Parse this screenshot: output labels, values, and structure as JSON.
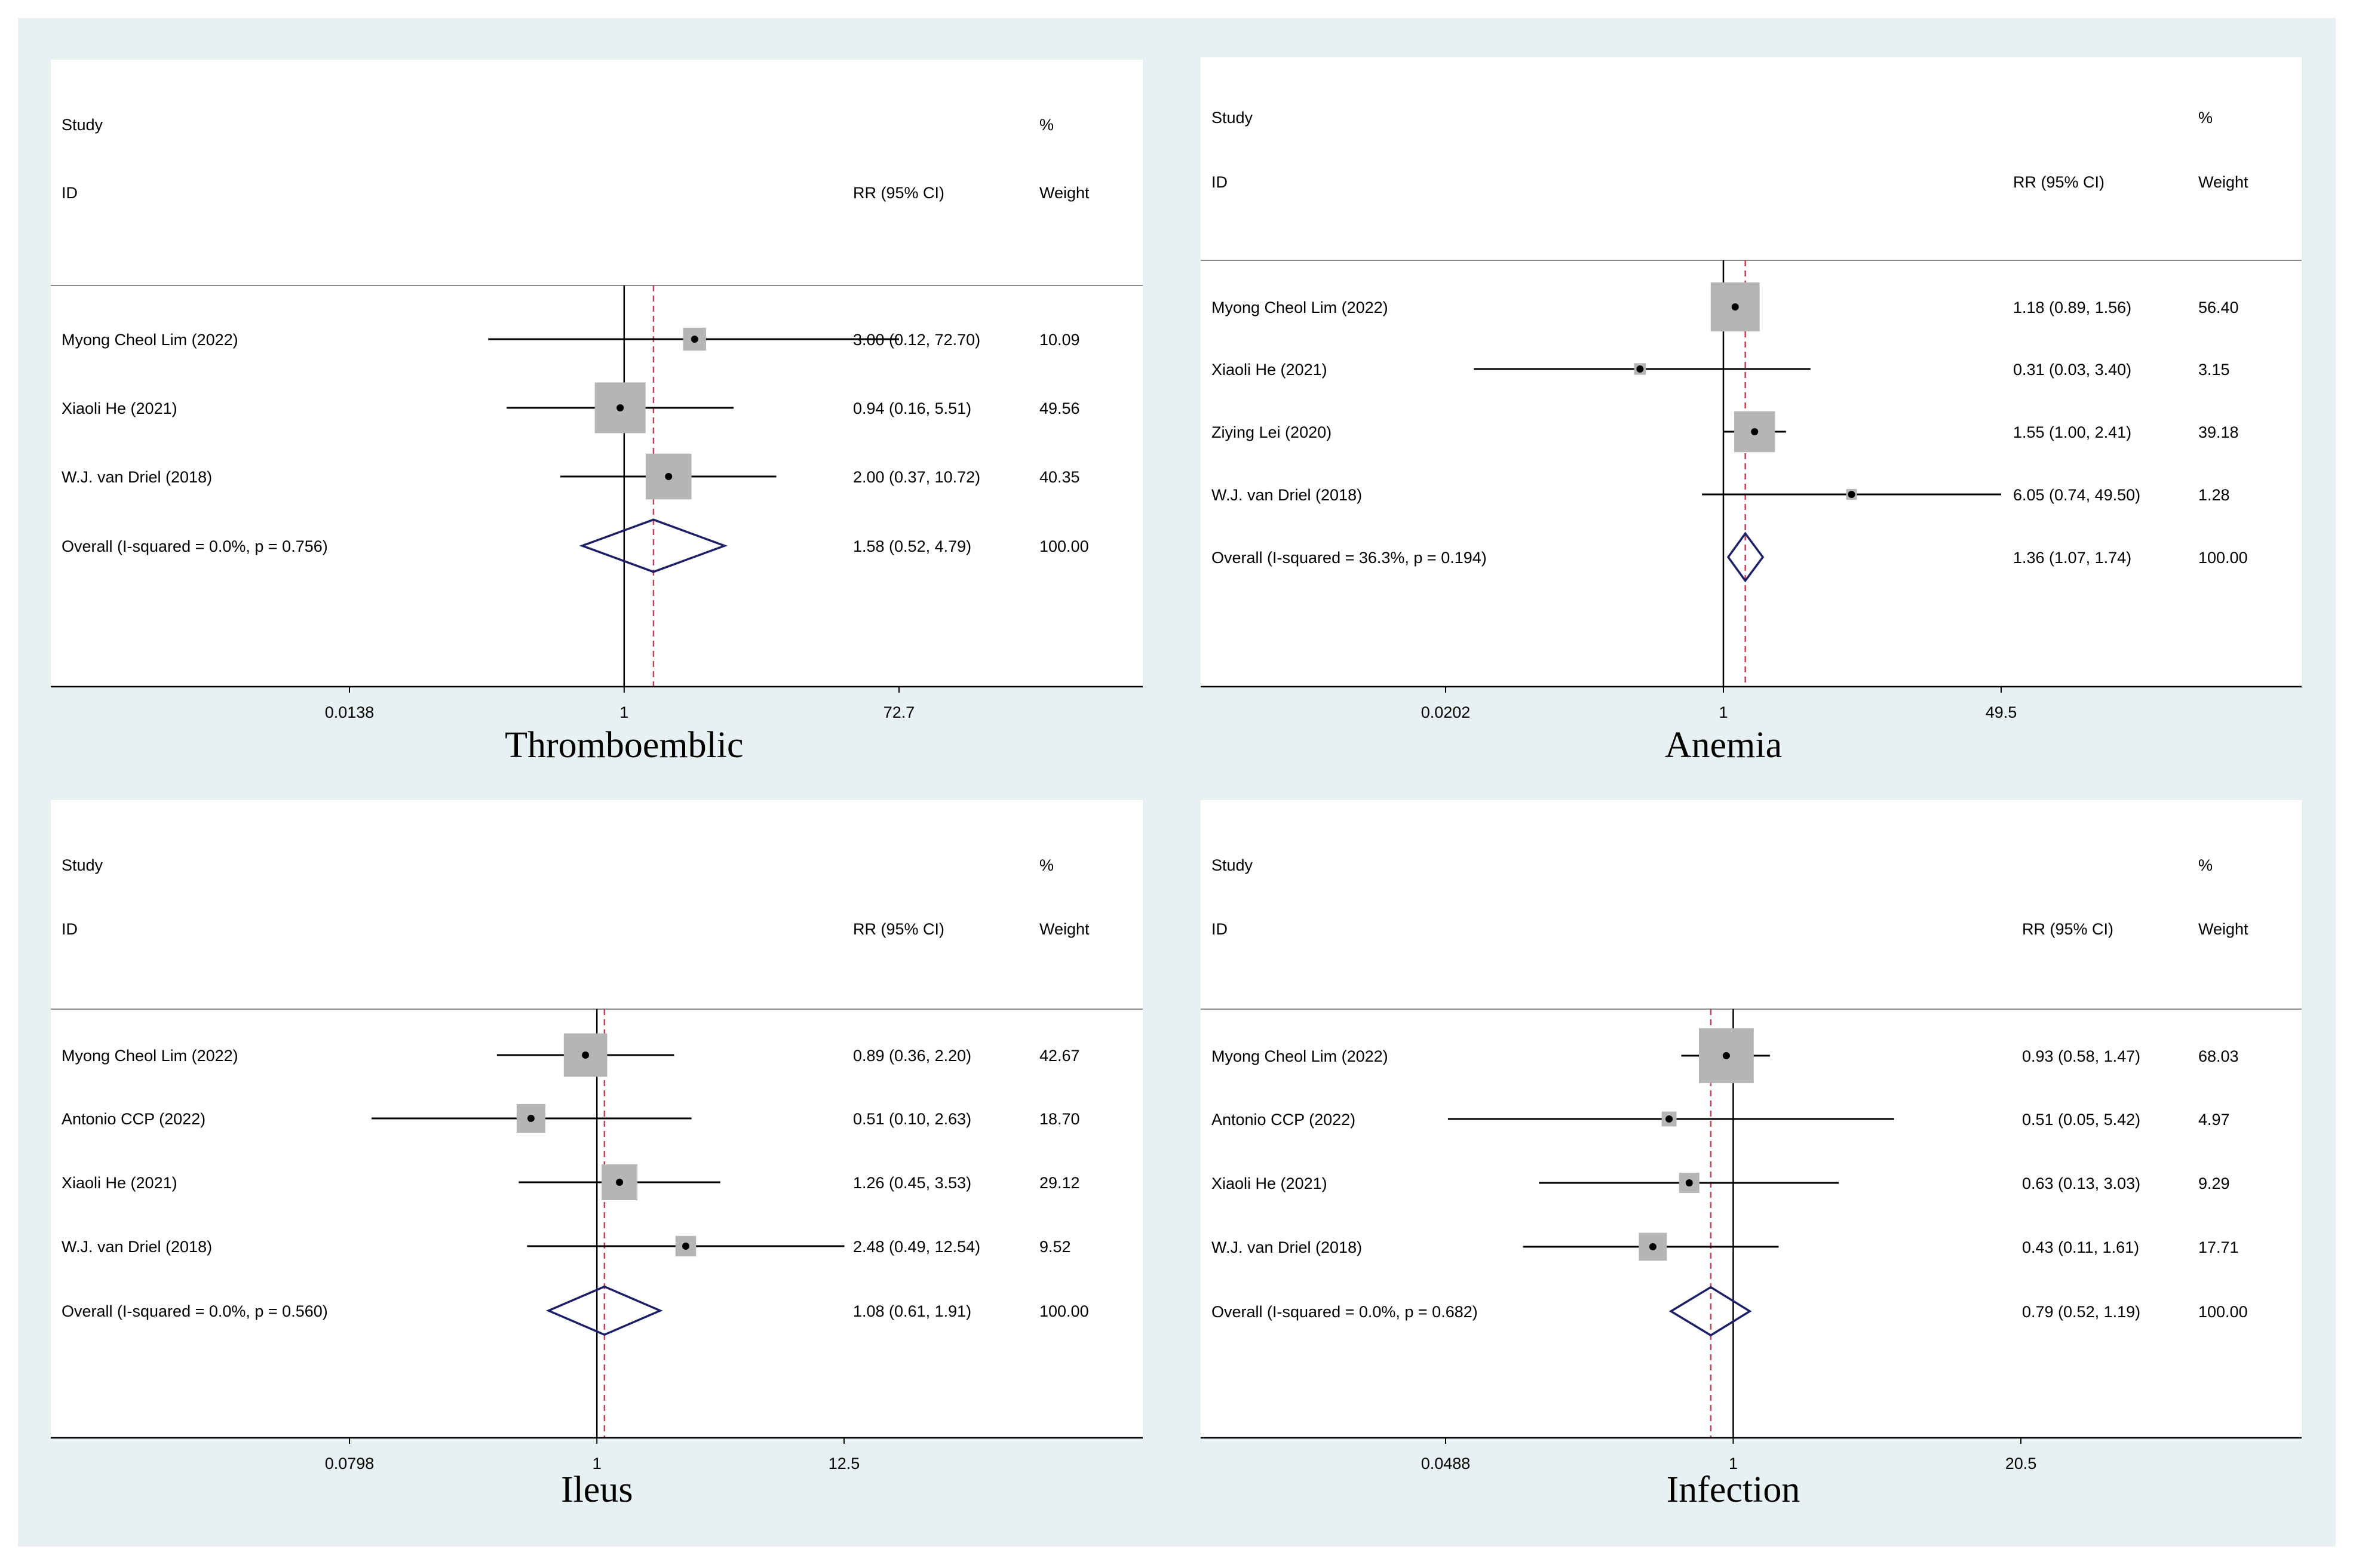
{
  "figure": {
    "colors": {
      "background": "#e7f1f1",
      "panel": "#ffffff",
      "marker_box": "#b5b5b5",
      "diamond": "#1b1f66",
      "reference_line": "#000000",
      "pooled_line": "#c0455a",
      "text": "#000000"
    }
  },
  "chart_data": [
    {
      "type": "forest",
      "title": "Thromboemblic",
      "header": {
        "study_line1": "Study",
        "study_line2": "ID",
        "effect_label": "RR (95% CI)",
        "weight_line1": "%",
        "weight_line2": "Weight"
      },
      "axis": {
        "scale": "log",
        "ticks": [
          0.0138,
          1,
          72.7
        ],
        "tick_labels": [
          "0.0138",
          "1",
          "72.7"
        ]
      },
      "studies": [
        {
          "label": "Myong Cheol Lim (2022)",
          "rr": 3.0,
          "lo": 0.12,
          "hi": 72.7,
          "ci_text": "3.00 (0.12, 72.70)",
          "weight": 10.09,
          "weight_text": "10.09"
        },
        {
          "label": "Xiaoli He (2021)",
          "rr": 0.94,
          "lo": 0.16,
          "hi": 5.51,
          "ci_text": "0.94 (0.16, 5.51)",
          "weight": 49.56,
          "weight_text": "49.56"
        },
        {
          "label": "W.J. van Driel (2018)",
          "rr": 2.0,
          "lo": 0.37,
          "hi": 10.72,
          "ci_text": "2.00 (0.37, 10.72)",
          "weight": 40.35,
          "weight_text": "40.35"
        }
      ],
      "overall": {
        "label": "Overall  (I-squared = 0.0%, p = 0.756)",
        "rr": 1.58,
        "lo": 0.52,
        "hi": 4.79,
        "ci_text": "1.58 (0.52, 4.79)",
        "weight_text": "100.00"
      }
    },
    {
      "type": "forest",
      "title": "Anemia",
      "header": {
        "study_line1": "Study",
        "study_line2": "ID",
        "effect_label": "RR (95% CI)",
        "weight_line1": "%",
        "weight_line2": "Weight"
      },
      "axis": {
        "scale": "log",
        "ticks": [
          0.0202,
          1,
          49.5
        ],
        "tick_labels": [
          "0.0202",
          "1",
          "49.5"
        ]
      },
      "studies": [
        {
          "label": "Myong Cheol Lim (2022)",
          "rr": 1.18,
          "lo": 0.89,
          "hi": 1.56,
          "ci_text": "1.18 (0.89, 1.56)",
          "weight": 56.4,
          "weight_text": "56.40"
        },
        {
          "label": "Xiaoli He (2021)",
          "rr": 0.31,
          "lo": 0.03,
          "hi": 3.4,
          "ci_text": "0.31 (0.03, 3.40)",
          "weight": 3.15,
          "weight_text": "3.15"
        },
        {
          "label": "Ziying Lei (2020)",
          "rr": 1.55,
          "lo": 1.0,
          "hi": 2.41,
          "ci_text": "1.55 (1.00, 2.41)",
          "weight": 39.18,
          "weight_text": "39.18"
        },
        {
          "label": "W.J. van Driel (2018)",
          "rr": 6.05,
          "lo": 0.74,
          "hi": 49.5,
          "ci_text": "6.05 (0.74, 49.50)",
          "weight": 1.28,
          "weight_text": "1.28"
        }
      ],
      "overall": {
        "label": "Overall  (I-squared = 36.3%, p = 0.194)",
        "rr": 1.36,
        "lo": 1.07,
        "hi": 1.74,
        "ci_text": "1.36 (1.07, 1.74)",
        "weight_text": "100.00"
      }
    },
    {
      "type": "forest",
      "title": "Ileus",
      "header": {
        "study_line1": "Study",
        "study_line2": "ID",
        "effect_label": "RR (95% CI)",
        "weight_line1": "%",
        "weight_line2": "Weight"
      },
      "axis": {
        "scale": "log",
        "ticks": [
          0.0798,
          1,
          12.5
        ],
        "tick_labels": [
          "0.0798",
          "1",
          "12.5"
        ]
      },
      "studies": [
        {
          "label": "Myong Cheol Lim (2022)",
          "rr": 0.89,
          "lo": 0.36,
          "hi": 2.2,
          "ci_text": "0.89 (0.36, 2.20)",
          "weight": 42.67,
          "weight_text": "42.67"
        },
        {
          "label": "Antonio CCP (2022)",
          "rr": 0.51,
          "lo": 0.1,
          "hi": 2.63,
          "ci_text": "0.51 (0.10, 2.63)",
          "weight": 18.7,
          "weight_text": "18.70"
        },
        {
          "label": "Xiaoli He (2021)",
          "rr": 1.26,
          "lo": 0.45,
          "hi": 3.53,
          "ci_text": "1.26 (0.45, 3.53)",
          "weight": 29.12,
          "weight_text": "29.12"
        },
        {
          "label": "W.J. van Driel (2018)",
          "rr": 2.48,
          "lo": 0.49,
          "hi": 12.54,
          "ci_text": "2.48 (0.49, 12.54)",
          "weight": 9.52,
          "weight_text": "9.52"
        }
      ],
      "overall": {
        "label": "Overall  (I-squared = 0.0%, p = 0.560)",
        "rr": 1.08,
        "lo": 0.61,
        "hi": 1.91,
        "ci_text": "1.08 (0.61, 1.91)",
        "weight_text": "100.00"
      }
    },
    {
      "type": "forest",
      "title": "Infection",
      "header": {
        "study_line1": "Study",
        "study_line2": "ID",
        "effect_label": "RR (95% CI)",
        "weight_line1": "%",
        "weight_line2": "Weight"
      },
      "axis": {
        "scale": "log",
        "ticks": [
          0.0488,
          1,
          20.5
        ],
        "tick_labels": [
          "0.0488",
          "1",
          "20.5"
        ]
      },
      "studies": [
        {
          "label": "Myong Cheol Lim (2022)",
          "rr": 0.93,
          "lo": 0.58,
          "hi": 1.47,
          "ci_text": "0.93 (0.58, 1.47)",
          "weight": 68.03,
          "weight_text": "68.03"
        },
        {
          "label": "Antonio CCP (2022)",
          "rr": 0.51,
          "lo": 0.05,
          "hi": 5.42,
          "ci_text": "0.51 (0.05, 5.42)",
          "weight": 4.97,
          "weight_text": "4.97"
        },
        {
          "label": "Xiaoli He (2021)",
          "rr": 0.63,
          "lo": 0.13,
          "hi": 3.03,
          "ci_text": "0.63 (0.13, 3.03)",
          "weight": 9.29,
          "weight_text": "9.29"
        },
        {
          "label": "W.J. van Driel (2018)",
          "rr": 0.43,
          "lo": 0.11,
          "hi": 1.61,
          "ci_text": "0.43 (0.11, 1.61)",
          "weight": 17.71,
          "weight_text": "17.71"
        }
      ],
      "overall": {
        "label": "Overall  (I-squared = 0.0%, p = 0.682)",
        "rr": 0.79,
        "lo": 0.52,
        "hi": 1.19,
        "ci_text": "0.79 (0.52, 1.19)",
        "weight_text": "100.00"
      }
    }
  ]
}
